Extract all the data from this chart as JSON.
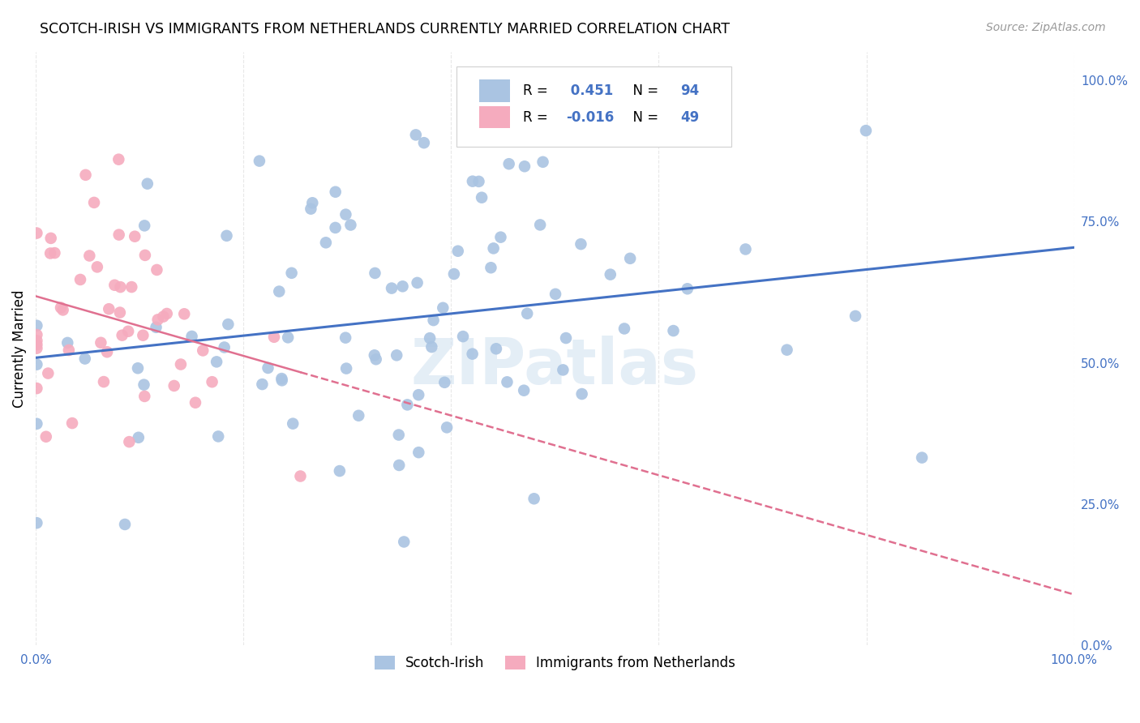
{
  "title": "SCOTCH-IRISH VS IMMIGRANTS FROM NETHERLANDS CURRENTLY MARRIED CORRELATION CHART",
  "source": "Source: ZipAtlas.com",
  "ylabel": "Currently Married",
  "series1_label": "Scotch-Irish",
  "series2_label": "Immigrants from Netherlands",
  "series1_R": 0.451,
  "series1_N": 94,
  "series2_R": -0.016,
  "series2_N": 49,
  "series1_color": "#aac4e2",
  "series2_color": "#f5abbe",
  "series1_line_color": "#4472c4",
  "series2_line_color": "#e07090",
  "background_color": "#ffffff",
  "grid_color": "#e8e8e8",
  "watermark": "ZIPatlas",
  "xlim": [
    0.0,
    1.0
  ],
  "ylim": [
    0.0,
    1.05
  ],
  "right_ytick_labels": [
    "0.0%",
    "25.0%",
    "50.0%",
    "75.0%",
    "100.0%"
  ],
  "right_ytick_values": [
    0.0,
    0.25,
    0.5,
    0.75,
    1.0
  ]
}
